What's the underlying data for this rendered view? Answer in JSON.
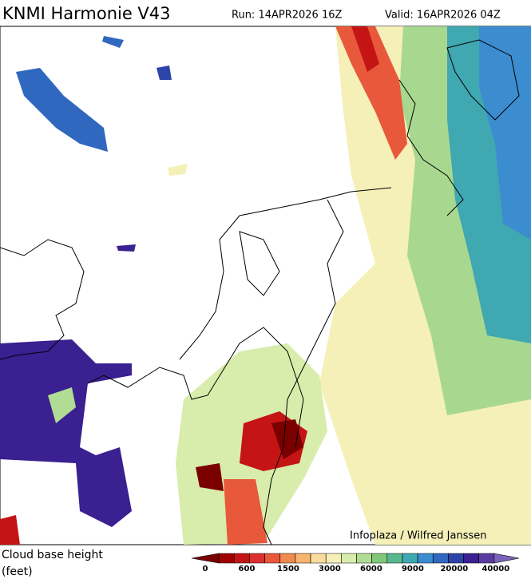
{
  "header": {
    "title": "KNMI Harmonie V43",
    "run": "Run: 14APR2026 16Z",
    "valid": "Valid: 16APR2026 04Z"
  },
  "map": {
    "credit": "Infoplaza / Wilfred Janssen"
  },
  "legend": {
    "label_line1": "Cloud base height",
    "label_line2": "(feet)",
    "colors": [
      "#7a0000",
      "#a00000",
      "#c41414",
      "#dc3030",
      "#e8583a",
      "#f08a50",
      "#f6b46e",
      "#fadc9c",
      "#f4f0b8",
      "#d8ecac",
      "#b0dc94",
      "#80c878",
      "#58b890",
      "#40a8b0",
      "#3c8cd0",
      "#3068c0",
      "#2c44a8",
      "#3a2090",
      "#5a3ca0",
      "#7c64b8"
    ],
    "ticks": [
      0,
      600,
      1500,
      3000,
      6000,
      9000,
      20000,
      40000
    ]
  }
}
